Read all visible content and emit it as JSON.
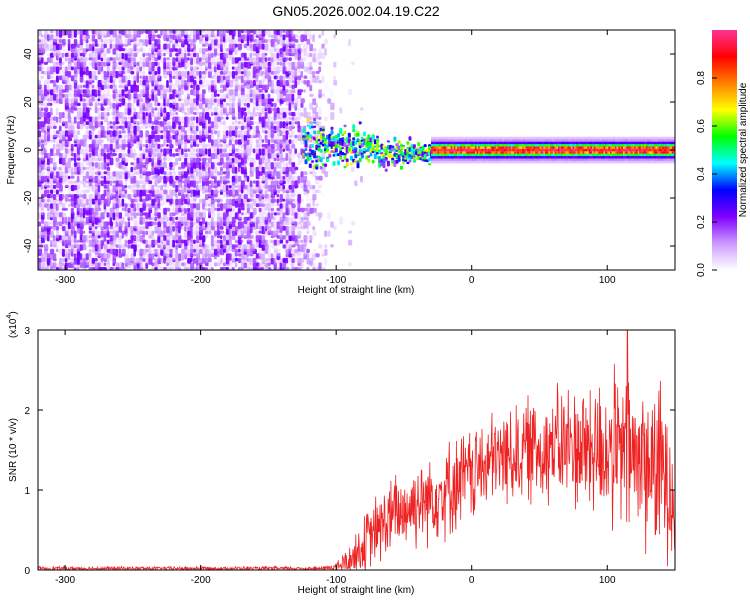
{
  "title": "GN05.2026.002.04.19.C22",
  "chart_data": [
    {
      "type": "heatmap",
      "name": "spectrogram",
      "xlabel": "Height of straight line (km)",
      "ylabel": "Frequency (Hz)",
      "xlim": [
        -320,
        150
      ],
      "ylim": [
        -50,
        50
      ],
      "x_ticks": [
        -300,
        -200,
        -100,
        0,
        100
      ],
      "y_ticks": [
        -40,
        -20,
        0,
        20,
        40
      ],
      "colorbar": {
        "label": "Normalized spectral amplitude",
        "range": [
          0,
          1
        ],
        "ticks": [
          0.0,
          0.2,
          0.4,
          0.6,
          0.8
        ],
        "colors": [
          "#ffffff",
          "#cc99ff",
          "#7f00ff",
          "#0000ff",
          "#00ffff",
          "#00ff00",
          "#ffff00",
          "#ff8000",
          "#ff0000",
          "#ff3399"
        ]
      },
      "regions": [
        {
          "desc": "diffuse noise",
          "x": [
            -320,
            -100
          ],
          "freq": [
            -50,
            50
          ],
          "amplitude": 0.12
        },
        {
          "desc": "broadened signal",
          "x": [
            -125,
            -30
          ],
          "freq": [
            -10,
            10
          ],
          "amplitude": 0.35
        },
        {
          "desc": "coherent tone",
          "x": [
            -30,
            150
          ],
          "freq": [
            -2,
            2
          ],
          "amplitude": 0.95
        }
      ]
    },
    {
      "type": "line",
      "name": "snr",
      "xlabel": "Height of straight line (km)",
      "ylabel": "SNR (10 * v/v)",
      "y_scale_label": "(x10",
      "y_scale_exp": "4",
      "xlim": [
        -320,
        150
      ],
      "ylim": [
        0,
        3
      ],
      "x_ticks": [
        -300,
        -200,
        -100,
        0,
        100
      ],
      "y_ticks": [
        0,
        1,
        2,
        3
      ],
      "color": "#ee2222",
      "envelope": {
        "x": [
          -320,
          -110,
          -100,
          -90,
          -80,
          -70,
          -60,
          -40,
          -20,
          0,
          20,
          40,
          60,
          80,
          100,
          120,
          140,
          150
        ],
        "mean": [
          0.02,
          0.02,
          0.04,
          0.12,
          0.3,
          0.5,
          0.65,
          0.85,
          1.0,
          1.2,
          1.4,
          1.5,
          1.55,
          1.55,
          1.5,
          1.4,
          1.25,
          1.15
        ],
        "spread": [
          0.02,
          0.02,
          0.05,
          0.18,
          0.3,
          0.38,
          0.42,
          0.46,
          0.5,
          0.5,
          0.5,
          0.55,
          0.6,
          0.7,
          0.8,
          0.9,
          0.9,
          0.9
        ]
      },
      "peak": {
        "x": 115,
        "y": 3.05
      }
    }
  ]
}
